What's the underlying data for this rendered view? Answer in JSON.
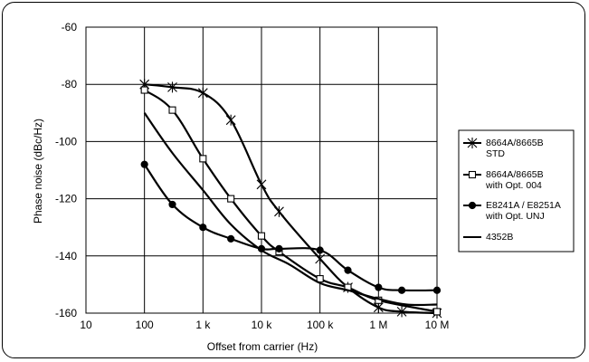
{
  "chart_data": {
    "type": "line",
    "xscale": "log",
    "xlim": [
      10,
      10000000
    ],
    "ylim": [
      -160,
      -60
    ],
    "xlabel": "Offset from carrier (Hz)",
    "ylabel": "Phase noise (dBc/Hz)",
    "title": "",
    "grid": true,
    "legend_position": "right",
    "xtick_values": [
      10,
      100,
      1000,
      10000,
      100000,
      1000000,
      10000000
    ],
    "xtick_labels": [
      "10",
      "100",
      "1 k",
      "10 k",
      "100 k",
      "1 M",
      "10 M"
    ],
    "ytick_values": [
      -60,
      -80,
      -100,
      -120,
      -140,
      -160
    ],
    "ytick_labels": [
      "-60",
      "-80",
      "-100",
      "-120",
      "-140",
      "-160"
    ],
    "series": [
      {
        "name_lines": [
          "8664A/8665B",
          "STD"
        ],
        "marker": "star",
        "x": [
          100,
          300,
          1000,
          3000,
          10000,
          20000,
          100000,
          300000,
          1000000,
          2500000,
          10000000
        ],
        "y": [
          -80,
          -81,
          -83,
          -92.5,
          -115,
          -124.5,
          -141,
          -151,
          -158,
          -159.5,
          -160
        ]
      },
      {
        "name_lines": [
          "8664A/8665B",
          "with Opt. 004"
        ],
        "marker": "square",
        "x": [
          100,
          300,
          1000,
          3000,
          10000,
          20000,
          100000,
          300000,
          1000000,
          10000000
        ],
        "y": [
          -82,
          -89,
          -106,
          -120,
          -133,
          -138.5,
          -148,
          -151,
          -155.5,
          -159.5
        ]
      },
      {
        "name_lines": [
          "E8241A / E8251A",
          "with Opt. UNJ"
        ],
        "marker": "circle",
        "x": [
          100,
          300,
          1000,
          3000,
          10000,
          20000,
          100000,
          300000,
          1000000,
          2500000,
          10000000
        ],
        "y": [
          -108,
          -122,
          -130,
          -134,
          -137.5,
          -137.5,
          -138,
          -145,
          -151,
          -152,
          -152
        ]
      },
      {
        "name_lines": [
          "4352B"
        ],
        "marker": "none",
        "x": [
          100,
          300,
          1000,
          3000,
          10000,
          30000,
          100000,
          300000,
          1000000,
          3000000,
          10000000
        ],
        "y": [
          -90,
          -104,
          -117,
          -129,
          -138,
          -143,
          -149.5,
          -152,
          -155,
          -157,
          -157
        ]
      }
    ]
  }
}
